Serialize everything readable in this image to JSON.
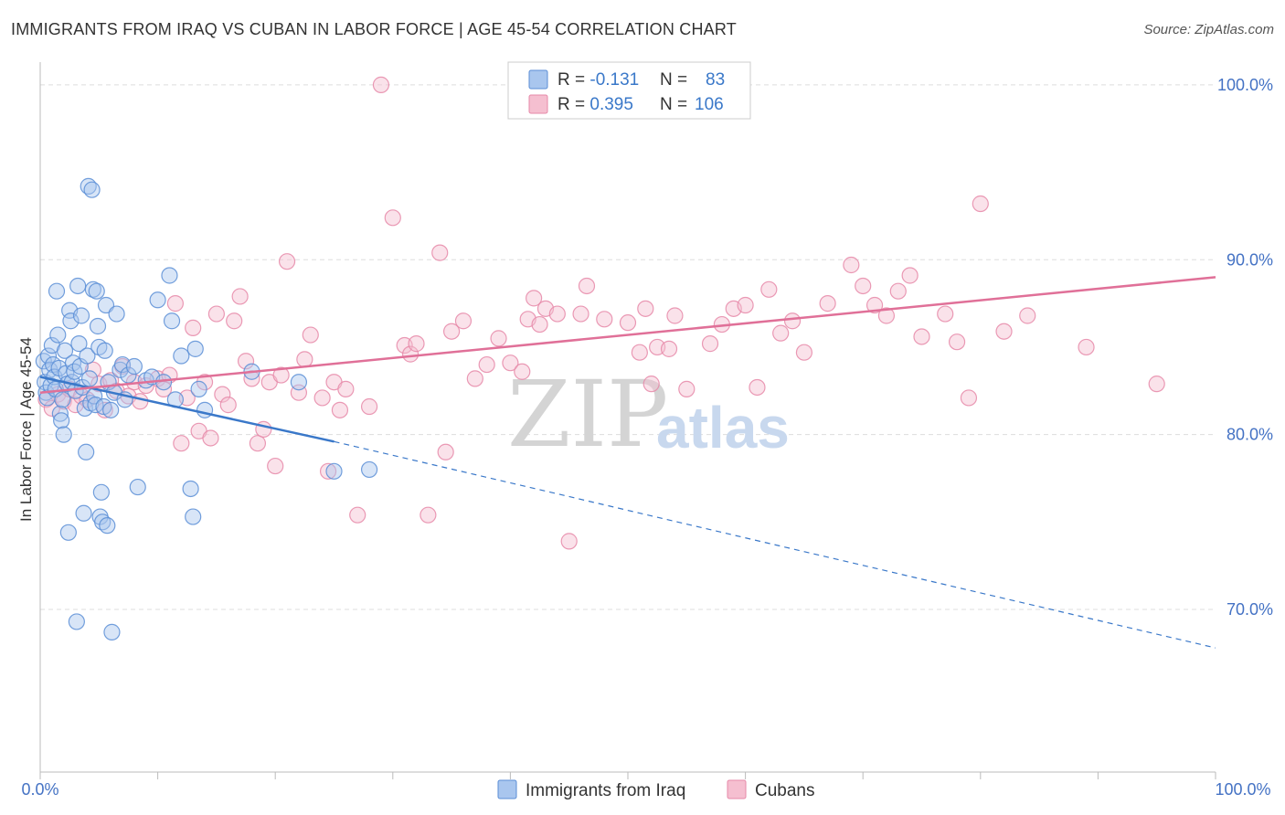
{
  "header": {
    "title": "IMMIGRANTS FROM IRAQ VS CUBAN IN LABOR FORCE | AGE 45-54 CORRELATION CHART",
    "source": "Source: ZipAtlas.com"
  },
  "watermark": {
    "zip": "ZIP",
    "atlas": "atlas"
  },
  "colors": {
    "iraq_fill": "#a9c6ee",
    "iraq_stroke": "#5b8ed6",
    "iraq_line": "#3a78c9",
    "cuban_fill": "#f5bfd0",
    "cuban_stroke": "#e688a8",
    "cuban_line": "#e07098",
    "tick_blue": "#4472c4",
    "grid": "#dddddd"
  },
  "legend": {
    "rows": [
      {
        "r_label": "R = ",
        "r_value": "-0.131",
        "n_label": "N = ",
        "n_value": "83"
      },
      {
        "r_label": "R = ",
        "r_value": "0.395",
        "n_label": "N = ",
        "n_value": "106"
      }
    ]
  },
  "bottom_legend": {
    "iraq": "Immigrants from Iraq",
    "cuban": "Cubans"
  },
  "chart_data": {
    "type": "scatter",
    "title": "IMMIGRANTS FROM IRAQ VS CUBAN IN LABOR FORCE | AGE 45-54 CORRELATION CHART",
    "xlabel": "",
    "ylabel": "In Labor Force | Age 45-54",
    "xlim": [
      0,
      100
    ],
    "ylim": [
      60.7,
      101.3
    ],
    "x_tick_labels": [
      "0.0%",
      "100.0%"
    ],
    "y_ticks": [
      {
        "value": 100,
        "label": "100.0%"
      },
      {
        "value": 90,
        "label": "90.0%"
      },
      {
        "value": 80,
        "label": "80.0%"
      },
      {
        "value": 70,
        "label": "70.0%"
      }
    ],
    "series": [
      {
        "name": "Immigrants from Iraq",
        "r": -0.131,
        "n": 83,
        "trend": {
          "x0": 0,
          "y0": 83.3,
          "x1": 25,
          "y1": 79.6,
          "dash_x1": 100,
          "dash_y1": 67.8
        },
        "points": [
          [
            0.3,
            84.2
          ],
          [
            0.4,
            83.0
          ],
          [
            0.5,
            82.4
          ],
          [
            0.6,
            82.1
          ],
          [
            0.7,
            84.5
          ],
          [
            0.8,
            83.7
          ],
          [
            0.9,
            82.8
          ],
          [
            1.0,
            85.1
          ],
          [
            1.1,
            84.0
          ],
          [
            1.2,
            83.3
          ],
          [
            1.3,
            82.6
          ],
          [
            1.4,
            88.2
          ],
          [
            1.5,
            85.7
          ],
          [
            1.6,
            83.8
          ],
          [
            1.7,
            81.2
          ],
          [
            1.8,
            80.8
          ],
          [
            1.9,
            82.0
          ],
          [
            2.0,
            80.0
          ],
          [
            2.1,
            84.8
          ],
          [
            2.2,
            83.5
          ],
          [
            2.3,
            82.9
          ],
          [
            2.4,
            74.4
          ],
          [
            2.5,
            87.1
          ],
          [
            2.6,
            86.5
          ],
          [
            2.7,
            83.0
          ],
          [
            2.8,
            84.1
          ],
          [
            2.9,
            83.6
          ],
          [
            3.0,
            82.5
          ],
          [
            3.1,
            69.3
          ],
          [
            3.2,
            88.5
          ],
          [
            3.3,
            85.2
          ],
          [
            3.4,
            83.9
          ],
          [
            3.5,
            86.8
          ],
          [
            3.6,
            82.7
          ],
          [
            3.7,
            75.5
          ],
          [
            3.8,
            81.5
          ],
          [
            3.9,
            79.0
          ],
          [
            4.0,
            84.5
          ],
          [
            4.1,
            94.2
          ],
          [
            4.2,
            83.2
          ],
          [
            4.3,
            81.8
          ],
          [
            4.4,
            94.0
          ],
          [
            4.5,
            88.3
          ],
          [
            4.6,
            82.2
          ],
          [
            4.7,
            81.7
          ],
          [
            4.8,
            88.2
          ],
          [
            4.9,
            86.2
          ],
          [
            5.0,
            85.0
          ],
          [
            5.1,
            75.3
          ],
          [
            5.2,
            76.7
          ],
          [
            5.3,
            75.0
          ],
          [
            5.4,
            81.6
          ],
          [
            5.5,
            84.8
          ],
          [
            5.6,
            87.4
          ],
          [
            5.7,
            74.8
          ],
          [
            5.8,
            83.0
          ],
          [
            6.0,
            81.4
          ],
          [
            6.1,
            68.7
          ],
          [
            6.3,
            82.4
          ],
          [
            6.5,
            86.9
          ],
          [
            6.8,
            83.7
          ],
          [
            7.0,
            84.0
          ],
          [
            7.2,
            82.0
          ],
          [
            7.5,
            83.4
          ],
          [
            8.0,
            83.9
          ],
          [
            8.3,
            77.0
          ],
          [
            9.0,
            83.1
          ],
          [
            9.5,
            83.3
          ],
          [
            10.0,
            87.7
          ],
          [
            10.5,
            83.0
          ],
          [
            11.0,
            89.1
          ],
          [
            11.2,
            86.5
          ],
          [
            11.5,
            82.0
          ],
          [
            12.0,
            84.5
          ],
          [
            12.8,
            76.9
          ],
          [
            13.0,
            75.3
          ],
          [
            13.2,
            84.9
          ],
          [
            13.5,
            82.6
          ],
          [
            14.0,
            81.4
          ],
          [
            18.0,
            83.6
          ],
          [
            22.0,
            83.0
          ],
          [
            25.0,
            77.9
          ],
          [
            28.0,
            78.0
          ]
        ]
      },
      {
        "name": "Cubans",
        "r": 0.395,
        "n": 106,
        "trend": {
          "x0": 0,
          "y0": 82.4,
          "x1": 100,
          "y1": 89.0
        },
        "points": [
          [
            0.5,
            82.0
          ],
          [
            1.0,
            81.5
          ],
          [
            1.5,
            82.3
          ],
          [
            2.0,
            81.9
          ],
          [
            2.5,
            82.6
          ],
          [
            3.0,
            81.7
          ],
          [
            3.5,
            82.2
          ],
          [
            4.0,
            82.0
          ],
          [
            4.5,
            83.7
          ],
          [
            5.0,
            82.9
          ],
          [
            5.5,
            81.4
          ],
          [
            6.0,
            83.1
          ],
          [
            6.5,
            82.5
          ],
          [
            7.0,
            83.9
          ],
          [
            7.5,
            82.2
          ],
          [
            8.0,
            83.0
          ],
          [
            8.5,
            81.9
          ],
          [
            9.0,
            82.8
          ],
          [
            10.0,
            83.2
          ],
          [
            10.5,
            82.6
          ],
          [
            11.0,
            83.4
          ],
          [
            11.5,
            87.5
          ],
          [
            12.0,
            79.5
          ],
          [
            12.5,
            82.1
          ],
          [
            13.0,
            86.1
          ],
          [
            13.5,
            80.2
          ],
          [
            14.0,
            83.0
          ],
          [
            14.5,
            79.8
          ],
          [
            15.0,
            86.9
          ],
          [
            15.5,
            82.3
          ],
          [
            16.0,
            81.7
          ],
          [
            16.5,
            86.5
          ],
          [
            17.0,
            87.9
          ],
          [
            17.5,
            84.2
          ],
          [
            18.0,
            83.2
          ],
          [
            18.5,
            79.5
          ],
          [
            19.0,
            80.3
          ],
          [
            19.5,
            83.0
          ],
          [
            20.0,
            78.2
          ],
          [
            20.5,
            83.4
          ],
          [
            21.0,
            89.9
          ],
          [
            22.0,
            82.4
          ],
          [
            22.5,
            84.3
          ],
          [
            23.0,
            85.7
          ],
          [
            24.0,
            82.1
          ],
          [
            24.5,
            77.9
          ],
          [
            25.0,
            83.0
          ],
          [
            25.5,
            81.4
          ],
          [
            26.0,
            82.6
          ],
          [
            27.0,
            75.4
          ],
          [
            28.0,
            81.6
          ],
          [
            29.0,
            100.0
          ],
          [
            30.0,
            92.4
          ],
          [
            31.0,
            85.1
          ],
          [
            31.5,
            84.6
          ],
          [
            32.0,
            85.2
          ],
          [
            33.0,
            75.4
          ],
          [
            34.0,
            90.4
          ],
          [
            34.5,
            79.0
          ],
          [
            35.0,
            85.9
          ],
          [
            36.0,
            86.5
          ],
          [
            37.0,
            83.2
          ],
          [
            38.0,
            84.0
          ],
          [
            39.0,
            85.5
          ],
          [
            40.0,
            84.1
          ],
          [
            41.0,
            83.6
          ],
          [
            41.5,
            86.6
          ],
          [
            42.0,
            87.8
          ],
          [
            42.5,
            86.3
          ],
          [
            43.0,
            87.2
          ],
          [
            44.0,
            86.9
          ],
          [
            45.0,
            73.9
          ],
          [
            46.0,
            86.9
          ],
          [
            46.5,
            88.5
          ],
          [
            48.0,
            86.6
          ],
          [
            50.0,
            86.4
          ],
          [
            51.0,
            84.7
          ],
          [
            51.5,
            87.2
          ],
          [
            52.0,
            82.9
          ],
          [
            52.5,
            85.0
          ],
          [
            53.5,
            84.9
          ],
          [
            54.0,
            86.8
          ],
          [
            55.0,
            82.6
          ],
          [
            57.0,
            85.2
          ],
          [
            58.0,
            86.3
          ],
          [
            59.0,
            87.2
          ],
          [
            60.0,
            87.4
          ],
          [
            61.0,
            82.7
          ],
          [
            62.0,
            88.3
          ],
          [
            63.0,
            85.8
          ],
          [
            64.0,
            86.5
          ],
          [
            65.0,
            84.7
          ],
          [
            67.0,
            87.5
          ],
          [
            69.0,
            89.7
          ],
          [
            70.0,
            88.5
          ],
          [
            71.0,
            87.4
          ],
          [
            72.0,
            86.8
          ],
          [
            73.0,
            88.2
          ],
          [
            74.0,
            89.1
          ],
          [
            75.0,
            85.6
          ],
          [
            77.0,
            86.9
          ],
          [
            78.0,
            85.3
          ],
          [
            79.0,
            82.1
          ],
          [
            80.0,
            93.2
          ],
          [
            82.0,
            85.9
          ],
          [
            84.0,
            86.8
          ],
          [
            89.0,
            85.0
          ],
          [
            95.0,
            82.9
          ]
        ]
      }
    ]
  }
}
